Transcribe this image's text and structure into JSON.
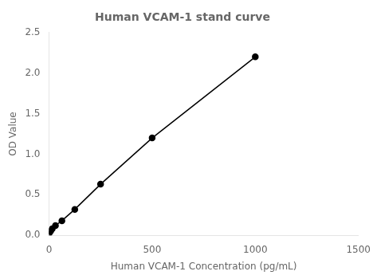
{
  "chart_data": {
    "type": "line",
    "title": "Human VCAM-1 stand curve",
    "xlabel": "Human VCAM-1 Concentration (pg/mL)",
    "ylabel": "OD Value",
    "x": [
      0,
      7.8,
      15.6,
      31.25,
      62.5,
      125,
      250,
      500,
      1000
    ],
    "values": [
      0.02,
      0.05,
      0.08,
      0.12,
      0.18,
      0.32,
      0.63,
      1.2,
      2.2
    ],
    "color": "#000000",
    "marker": "circle",
    "xlim": [
      0,
      1500
    ],
    "xticks": [
      0,
      500,
      1000,
      1500
    ],
    "ylim": [
      0,
      2.5
    ],
    "yticks": [
      {
        "value": 0,
        "label": "0.0"
      },
      0.5,
      {
        "value": 1,
        "label": "1.0"
      },
      1.5,
      {
        "value": 2,
        "label": "2.0"
      },
      2.5
    ],
    "grid": false
  }
}
